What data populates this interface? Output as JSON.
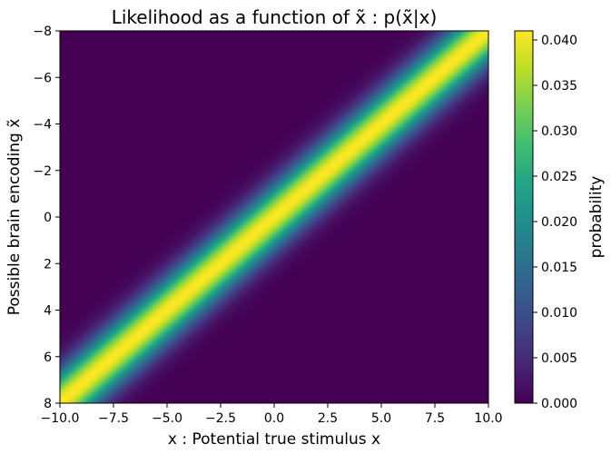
{
  "chart_data": {
    "type": "heatmap",
    "title": "Likelihood as a function of x̃ : p(x̃|x)",
    "xlabel": "x : Potential true stimulus x",
    "ylabel": "Possible brain encoding x̃",
    "x_range": [
      -10,
      10
    ],
    "y_range": [
      -8,
      8
    ],
    "y_inverted": true,
    "x_ticks": [
      -10,
      -7.5,
      -5,
      -2.5,
      0,
      2.5,
      5,
      7.5,
      10
    ],
    "x_tick_labels": [
      "−10.0",
      "−7.5",
      "−5.0",
      "−2.5",
      "0.0",
      "2.5",
      "5.0",
      "7.5",
      "10.0"
    ],
    "y_ticks": [
      -8,
      -6,
      -4,
      -2,
      0,
      2,
      4,
      6,
      8
    ],
    "y_tick_labels": [
      "−8",
      "−6",
      "−4",
      "−2",
      "0",
      "2",
      "4",
      "6",
      "8"
    ],
    "relation": "x̃ ≈ -0.8·x (Gaussian band)",
    "band_slope": -0.8,
    "band_sigma": 0.95,
    "colormap": "viridis",
    "colorbar": {
      "label": "probability",
      "range": [
        0,
        0.041
      ],
      "ticks": [
        0,
        0.005,
        0.01,
        0.015,
        0.02,
        0.025,
        0.03,
        0.035,
        0.04
      ],
      "tick_labels": [
        "0.000",
        "0.005",
        "0.010",
        "0.015",
        "0.020",
        "0.025",
        "0.030",
        "0.035",
        "0.040"
      ]
    },
    "grid": false
  }
}
